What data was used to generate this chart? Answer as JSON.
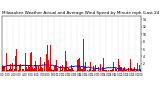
{
  "title": "Milwaukee Weather Actual and Average Wind Speed by Minute mph (Last 24 Hours)",
  "n_points": 1440,
  "ylim": [
    0,
    15
  ],
  "yticks": [
    2,
    4,
    6,
    8,
    10,
    12,
    14
  ],
  "background_color": "#ffffff",
  "bar_color": "#ff0000",
  "line_color": "#0000cc",
  "grid_color": "#bbbbbb",
  "title_fontsize": 3.0,
  "seed": 42
}
